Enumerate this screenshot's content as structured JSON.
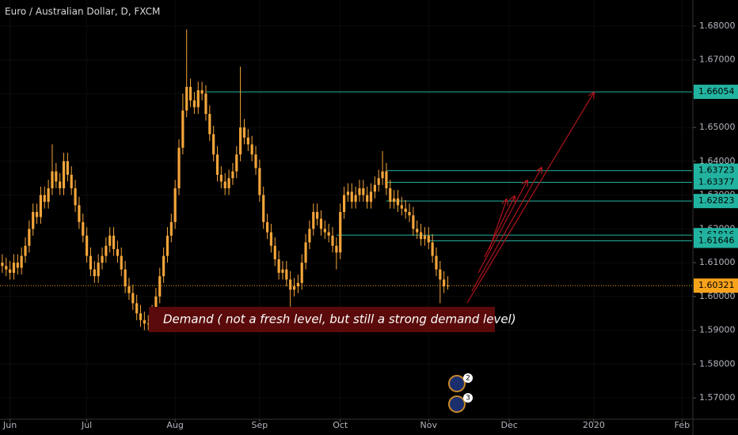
{
  "chart_data": {
    "type": "candlestick",
    "title": "Euro / Australian Dollar, D, FXCM",
    "color": "#f4a53a",
    "level_color": "#22b3a0",
    "price_color": "#f7a21b",
    "xlim": [
      -0.6,
      179.6
    ],
    "xticks": [
      {
        "value": 2,
        "label": "Jun"
      },
      {
        "value": 22,
        "label": "Jul"
      },
      {
        "value": 45,
        "label": "Aug"
      },
      {
        "value": 67,
        "label": "Sep"
      },
      {
        "value": 88,
        "label": "Oct"
      },
      {
        "value": 111,
        "label": "Nov"
      },
      {
        "value": 132,
        "label": "Dec"
      },
      {
        "value": 154,
        "label": "2020"
      },
      {
        "value": 177,
        "label": "Feb"
      }
    ],
    "ylim": [
      1.5637,
      1.6877
    ],
    "yticks": [
      {
        "value": 1.57,
        "label": "1.57000"
      },
      {
        "value": 1.58,
        "label": "1.58000"
      },
      {
        "value": 1.59,
        "label": "1.59000"
      },
      {
        "value": 1.6,
        "label": "1.60000"
      },
      {
        "value": 1.61,
        "label": "1.61000"
      },
      {
        "value": 1.62,
        "label": "1.62000"
      },
      {
        "value": 1.63,
        "label": "1.63000"
      },
      {
        "value": 1.64,
        "label": "1.64000"
      },
      {
        "value": 1.65,
        "label": "1.65000"
      },
      {
        "value": 1.66,
        "label": "1.66000"
      },
      {
        "value": 1.67,
        "label": "1.67000"
      },
      {
        "value": 1.68,
        "label": "1.68000"
      }
    ],
    "x": [
      0,
      1,
      2,
      3,
      4,
      5,
      6,
      7,
      8,
      9,
      10,
      11,
      12,
      13,
      14,
      15,
      16,
      17,
      18,
      19,
      20,
      21,
      22,
      23,
      24,
      25,
      26,
      27,
      28,
      29,
      30,
      31,
      32,
      33,
      34,
      35,
      36,
      37,
      38,
      39,
      40,
      41,
      42,
      43,
      44,
      45,
      46,
      47,
      48,
      49,
      50,
      51,
      52,
      53,
      54,
      55,
      56,
      57,
      58,
      59,
      60,
      61,
      62,
      63,
      64,
      65,
      66,
      67,
      68,
      69,
      70,
      71,
      72,
      73,
      74,
      75,
      76,
      77,
      78,
      79,
      80,
      81,
      82,
      83,
      84,
      85,
      86,
      87,
      88,
      89,
      90,
      91,
      92,
      93,
      94,
      95,
      96,
      97,
      98,
      99,
      100,
      101,
      102,
      103,
      104,
      105,
      106,
      107,
      108,
      109,
      110,
      111,
      112,
      113,
      114,
      115,
      116
    ],
    "candles": [
      [
        1.61,
        1.6125,
        1.607,
        1.609
      ],
      [
        1.609,
        1.6115,
        1.606,
        1.608
      ],
      [
        1.608,
        1.6105,
        1.605,
        1.607
      ],
      [
        1.607,
        1.6125,
        1.605,
        1.61
      ],
      [
        1.61,
        1.6125,
        1.6065,
        1.6085
      ],
      [
        1.6085,
        1.6145,
        1.6065,
        1.612
      ],
      [
        1.612,
        1.6175,
        1.61,
        1.615
      ],
      [
        1.615,
        1.6225,
        1.613,
        1.62
      ],
      [
        1.62,
        1.6275,
        1.618,
        1.625
      ],
      [
        1.625,
        1.6275,
        1.6215,
        1.6235
      ],
      [
        1.6235,
        1.6325,
        1.6215,
        1.63
      ],
      [
        1.63,
        1.6325,
        1.626,
        1.628
      ],
      [
        1.628,
        1.6345,
        1.626,
        1.632
      ],
      [
        1.632,
        1.645,
        1.63,
        1.637
      ],
      [
        1.637,
        1.6395,
        1.632,
        1.634
      ],
      [
        1.634,
        1.6365,
        1.63,
        1.632
      ],
      [
        1.632,
        1.6425,
        1.63,
        1.64
      ],
      [
        1.64,
        1.6425,
        1.634,
        1.636
      ],
      [
        1.636,
        1.6385,
        1.63,
        1.632
      ],
      [
        1.632,
        1.6345,
        1.625,
        1.627
      ],
      [
        1.627,
        1.6295,
        1.62,
        1.622
      ],
      [
        1.622,
        1.6245,
        1.616,
        1.618
      ],
      [
        1.618,
        1.6205,
        1.61,
        1.612
      ],
      [
        1.612,
        1.6145,
        1.606,
        1.608
      ],
      [
        1.608,
        1.6105,
        1.604,
        1.606
      ],
      [
        1.606,
        1.6125,
        1.604,
        1.61
      ],
      [
        1.61,
        1.6145,
        1.608,
        1.612
      ],
      [
        1.612,
        1.6175,
        1.61,
        1.615
      ],
      [
        1.615,
        1.6205,
        1.613,
        1.618
      ],
      [
        1.618,
        1.6205,
        1.612,
        1.614
      ],
      [
        1.614,
        1.6165,
        1.61,
        1.612
      ],
      [
        1.612,
        1.6145,
        1.606,
        1.608
      ],
      [
        1.608,
        1.6105,
        1.601,
        1.603
      ],
      [
        1.603,
        1.6055,
        1.599,
        1.601
      ],
      [
        1.601,
        1.6035,
        1.596,
        1.598
      ],
      [
        1.598,
        1.6005,
        1.593,
        1.595
      ],
      [
        1.595,
        1.5975,
        1.591,
        1.593
      ],
      [
        1.593,
        1.5955,
        1.59,
        1.592
      ],
      [
        1.592,
        1.5945,
        1.59,
        1.592
      ],
      [
        1.592,
        1.5975,
        1.59,
        1.595
      ],
      [
        1.595,
        1.6025,
        1.593,
        1.6
      ],
      [
        1.6,
        1.6085,
        1.598,
        1.606
      ],
      [
        1.606,
        1.6145,
        1.604,
        1.612
      ],
      [
        1.612,
        1.6205,
        1.61,
        1.618
      ],
      [
        1.618,
        1.6245,
        1.616,
        1.622
      ],
      [
        1.622,
        1.6345,
        1.62,
        1.632
      ],
      [
        1.632,
        1.6465,
        1.63,
        1.644
      ],
      [
        1.644,
        1.66,
        1.642,
        1.655
      ],
      [
        1.655,
        1.679,
        1.653,
        1.662
      ],
      [
        1.662,
        1.6645,
        1.656,
        1.658
      ],
      [
        1.658,
        1.6605,
        1.654,
        1.656
      ],
      [
        1.656,
        1.6635,
        1.654,
        1.661
      ],
      [
        1.661,
        1.6635,
        1.658,
        1.66
      ],
      [
        1.66,
        1.6625,
        1.652,
        1.654
      ],
      [
        1.654,
        1.6565,
        1.646,
        1.648
      ],
      [
        1.648,
        1.6505,
        1.64,
        1.642
      ],
      [
        1.642,
        1.6445,
        1.634,
        1.636
      ],
      [
        1.636,
        1.6385,
        1.632,
        1.634
      ],
      [
        1.634,
        1.6365,
        1.63,
        1.632
      ],
      [
        1.632,
        1.6375,
        1.63,
        1.635
      ],
      [
        1.635,
        1.6395,
        1.633,
        1.637
      ],
      [
        1.637,
        1.6445,
        1.635,
        1.642
      ],
      [
        1.642,
        1.668,
        1.64,
        1.65
      ],
      [
        1.65,
        1.6525,
        1.645,
        1.647
      ],
      [
        1.647,
        1.6495,
        1.643,
        1.645
      ],
      [
        1.645,
        1.6475,
        1.64,
        1.642
      ],
      [
        1.642,
        1.6445,
        1.636,
        1.638
      ],
      [
        1.638,
        1.6405,
        1.628,
        1.63
      ],
      [
        1.63,
        1.6325,
        1.62,
        1.622
      ],
      [
        1.622,
        1.6245,
        1.617,
        1.619
      ],
      [
        1.619,
        1.6215,
        1.613,
        1.615
      ],
      [
        1.615,
        1.6175,
        1.609,
        1.611
      ],
      [
        1.611,
        1.6135,
        1.605,
        1.607
      ],
      [
        1.607,
        1.6105,
        1.605,
        1.608
      ],
      [
        1.608,
        1.6105,
        1.603,
        1.605
      ],
      [
        1.605,
        1.6075,
        1.597,
        1.602
      ],
      [
        1.602,
        1.6055,
        1.6,
        1.603
      ],
      [
        1.603,
        1.6065,
        1.601,
        1.604
      ],
      [
        1.604,
        1.6125,
        1.602,
        1.61
      ],
      [
        1.61,
        1.6185,
        1.608,
        1.616
      ],
      [
        1.616,
        1.6225,
        1.614,
        1.62
      ],
      [
        1.62,
        1.6275,
        1.618,
        1.625
      ],
      [
        1.625,
        1.6275,
        1.621,
        1.623
      ],
      [
        1.623,
        1.6255,
        1.618,
        1.62
      ],
      [
        1.62,
        1.6225,
        1.617,
        1.619
      ],
      [
        1.619,
        1.6215,
        1.616,
        1.618
      ],
      [
        1.618,
        1.6205,
        1.613,
        1.615
      ],
      [
        1.615,
        1.6175,
        1.608,
        1.613
      ],
      [
        1.613,
        1.6275,
        1.611,
        1.625
      ],
      [
        1.625,
        1.6325,
        1.623,
        1.63
      ],
      [
        1.63,
        1.6335,
        1.628,
        1.631
      ],
      [
        1.631,
        1.6335,
        1.626,
        1.628
      ],
      [
        1.628,
        1.6325,
        1.626,
        1.63
      ],
      [
        1.63,
        1.6345,
        1.628,
        1.632
      ],
      [
        1.632,
        1.6345,
        1.628,
        1.63
      ],
      [
        1.63,
        1.6325,
        1.626,
        1.628
      ],
      [
        1.628,
        1.6335,
        1.626,
        1.631
      ],
      [
        1.631,
        1.6355,
        1.629,
        1.633
      ],
      [
        1.633,
        1.6375,
        1.631,
        1.635
      ],
      [
        1.635,
        1.643,
        1.633,
        1.637
      ],
      [
        1.637,
        1.6395,
        1.63,
        1.632
      ],
      [
        1.632,
        1.6345,
        1.626,
        1.628
      ],
      [
        1.628,
        1.6315,
        1.626,
        1.629
      ],
      [
        1.629,
        1.6315,
        1.625,
        1.627
      ],
      [
        1.627,
        1.6295,
        1.624,
        1.626
      ],
      [
        1.626,
        1.6285,
        1.623,
        1.625
      ],
      [
        1.625,
        1.6275,
        1.622,
        1.624
      ],
      [
        1.624,
        1.6265,
        1.618,
        1.62
      ],
      [
        1.62,
        1.6225,
        1.617,
        1.619
      ],
      [
        1.619,
        1.6215,
        1.615,
        1.617
      ],
      [
        1.617,
        1.6205,
        1.615,
        1.618
      ],
      [
        1.618,
        1.6205,
        1.614,
        1.616
      ],
      [
        1.616,
        1.6185,
        1.61,
        1.612
      ],
      [
        1.612,
        1.6145,
        1.606,
        1.608
      ],
      [
        1.608,
        1.6105,
        1.598,
        1.605
      ],
      [
        1.605,
        1.6075,
        1.601,
        1.603
      ],
      [
        1.603,
        1.606,
        1.602,
        1.6032
      ]
    ],
    "levels": [
      {
        "value": 1.66054,
        "start": 53
      },
      {
        "value": 1.63723,
        "start": 100
      },
      {
        "value": 1.63377,
        "start": 100
      },
      {
        "value": 1.62823,
        "start": 100
      },
      {
        "value": 1.61816,
        "start": 87
      },
      {
        "value": 1.61646,
        "start": 111
      }
    ],
    "last_price": 1.60321,
    "annotation": "Demand ( not a fresh level, but still a strong demand level)",
    "event_badges": [
      2,
      3
    ]
  }
}
